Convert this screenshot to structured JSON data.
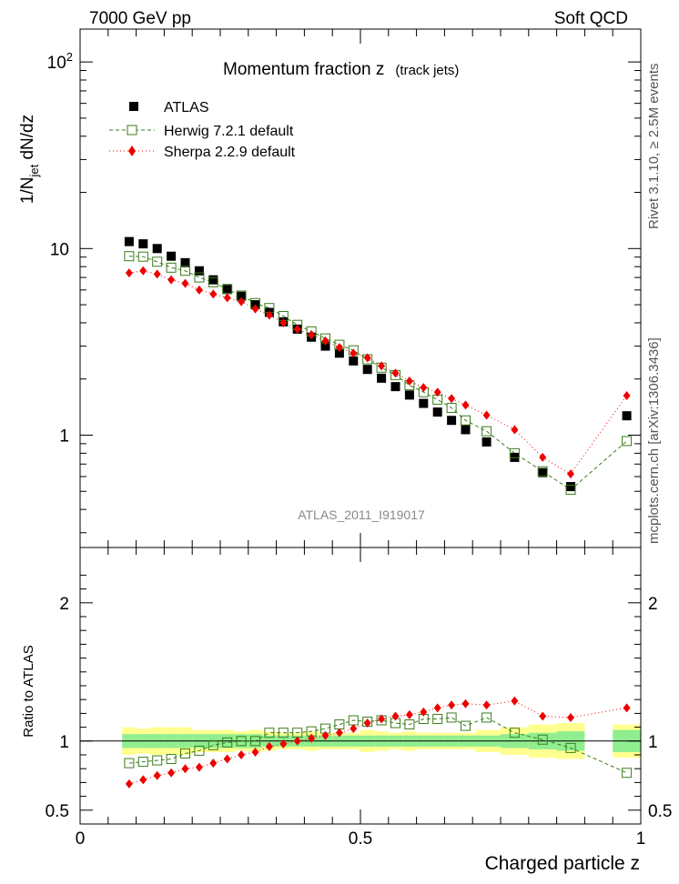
{
  "header": {
    "left": "7000 GeV pp",
    "right": "Soft QCD"
  },
  "side_labels": {
    "rivet": "Rivet 3.1.10, ≥ 2.5M events",
    "mcplots": "mcplots.cern.ch [arXiv:1306.3436]"
  },
  "watermark": "ATLAS_2011_I919017",
  "colors": {
    "atlas": "#000000",
    "herwig": "#3a7d1a",
    "sherpa": "#ee0000",
    "band_inner": "#90ee90",
    "band_outer": "#ffff90"
  },
  "chart_data": [
    {
      "type": "scatter",
      "panel": "main",
      "title": "Momentum fraction z",
      "title_note": "(track jets)",
      "ylabel": "1/N_jet dN/dz",
      "yscale": "log",
      "ylim": [
        0.25,
        150
      ],
      "xlim": [
        0,
        1
      ],
      "ytick_labels": [
        "10^2",
        "10",
        "1"
      ],
      "legend_position": "top-left",
      "x": [
        0.0875,
        0.1125,
        0.1375,
        0.1625,
        0.1875,
        0.2125,
        0.2375,
        0.2625,
        0.2875,
        0.3125,
        0.3375,
        0.3625,
        0.3875,
        0.4125,
        0.4375,
        0.4625,
        0.4875,
        0.5125,
        0.5375,
        0.5625,
        0.5875,
        0.6125,
        0.6375,
        0.6625,
        0.6875,
        0.725,
        0.775,
        0.825,
        0.875,
        0.975
      ],
      "series": [
        {
          "name": "ATLAS",
          "marker": "filled-square",
          "values": [
            10.9,
            10.6,
            10.0,
            9.1,
            8.4,
            7.6,
            6.8,
            6.1,
            5.55,
            5.0,
            4.55,
            4.05,
            3.7,
            3.35,
            3.0,
            2.75,
            2.5,
            2.25,
            2.02,
            1.82,
            1.64,
            1.48,
            1.33,
            1.2,
            1.07,
            0.92,
            0.76,
            0.63,
            0.53,
            1.27
          ]
        },
        {
          "name": "Herwig 7.2.1 default",
          "marker": "open-square",
          "values": [
            9.1,
            9.05,
            8.5,
            7.9,
            7.6,
            7.0,
            6.6,
            6.05,
            5.6,
            5.1,
            4.8,
            4.35,
            3.9,
            3.6,
            3.3,
            3.05,
            2.85,
            2.55,
            2.3,
            2.1,
            1.85,
            1.7,
            1.55,
            1.4,
            1.2,
            1.05,
            0.8,
            0.64,
            0.51,
            0.93
          ]
        },
        {
          "name": "Sherpa 2.2.9 default",
          "marker": "diamond",
          "values": [
            7.4,
            7.6,
            7.3,
            6.8,
            6.5,
            6.0,
            5.7,
            5.45,
            5.2,
            4.75,
            4.4,
            4.0,
            3.7,
            3.45,
            3.2,
            2.95,
            2.75,
            2.6,
            2.35,
            2.15,
            1.95,
            1.8,
            1.7,
            1.57,
            1.45,
            1.28,
            1.07,
            0.76,
            0.62,
            1.63
          ]
        }
      ]
    },
    {
      "type": "scatter",
      "panel": "ratio",
      "ylabel": "Ratio to ATLAS",
      "xlabel": "Charged particle z",
      "ylim": [
        0.4,
        2.4
      ],
      "xlim": [
        0,
        1
      ],
      "xtick_labels": [
        "0",
        "0.5",
        "1"
      ],
      "ytick_labels": [
        "2",
        "1",
        "0.5"
      ],
      "reference_line": 1.0,
      "x": [
        0.0875,
        0.1125,
        0.1375,
        0.1625,
        0.1875,
        0.2125,
        0.2375,
        0.2625,
        0.2875,
        0.3125,
        0.3375,
        0.3625,
        0.3875,
        0.4125,
        0.4375,
        0.4625,
        0.4875,
        0.5125,
        0.5375,
        0.5625,
        0.5875,
        0.6125,
        0.6375,
        0.6625,
        0.6875,
        0.725,
        0.775,
        0.825,
        0.875,
        0.975
      ],
      "band_inner": [
        0.05,
        0.05,
        0.05,
        0.05,
        0.05,
        0.05,
        0.05,
        0.05,
        0.05,
        0.05,
        0.04,
        0.04,
        0.04,
        0.04,
        0.04,
        0.04,
        0.04,
        0.04,
        0.04,
        0.04,
        0.04,
        0.04,
        0.04,
        0.04,
        0.04,
        0.04,
        0.05,
        0.06,
        0.07,
        0.08
      ],
      "band_outer": [
        0.1,
        0.09,
        0.1,
        0.1,
        0.1,
        0.08,
        0.08,
        0.08,
        0.07,
        0.08,
        0.07,
        0.06,
        0.06,
        0.07,
        0.06,
        0.06,
        0.06,
        0.08,
        0.07,
        0.06,
        0.07,
        0.06,
        0.06,
        0.06,
        0.06,
        0.08,
        0.1,
        0.12,
        0.13,
        0.12
      ],
      "series": [
        {
          "name": "Herwig 7.2.1 default",
          "marker": "open-square",
          "values": [
            0.84,
            0.85,
            0.86,
            0.87,
            0.91,
            0.93,
            0.97,
            0.99,
            1.0,
            1.0,
            1.06,
            1.06,
            1.06,
            1.07,
            1.09,
            1.12,
            1.15,
            1.14,
            1.15,
            1.13,
            1.12,
            1.16,
            1.16,
            1.17,
            1.11,
            1.17,
            1.06,
            1.01,
            0.95,
            0.77
          ]
        },
        {
          "name": "Sherpa 2.2.9 default",
          "marker": "diamond",
          "values": [
            0.69,
            0.72,
            0.75,
            0.77,
            0.8,
            0.81,
            0.84,
            0.87,
            0.9,
            0.92,
            0.96,
            0.98,
            1.0,
            1.02,
            1.04,
            1.06,
            1.09,
            1.13,
            1.16,
            1.18,
            1.19,
            1.21,
            1.24,
            1.26,
            1.27,
            1.26,
            1.29,
            1.18,
            1.17,
            1.24
          ]
        }
      ]
    }
  ]
}
